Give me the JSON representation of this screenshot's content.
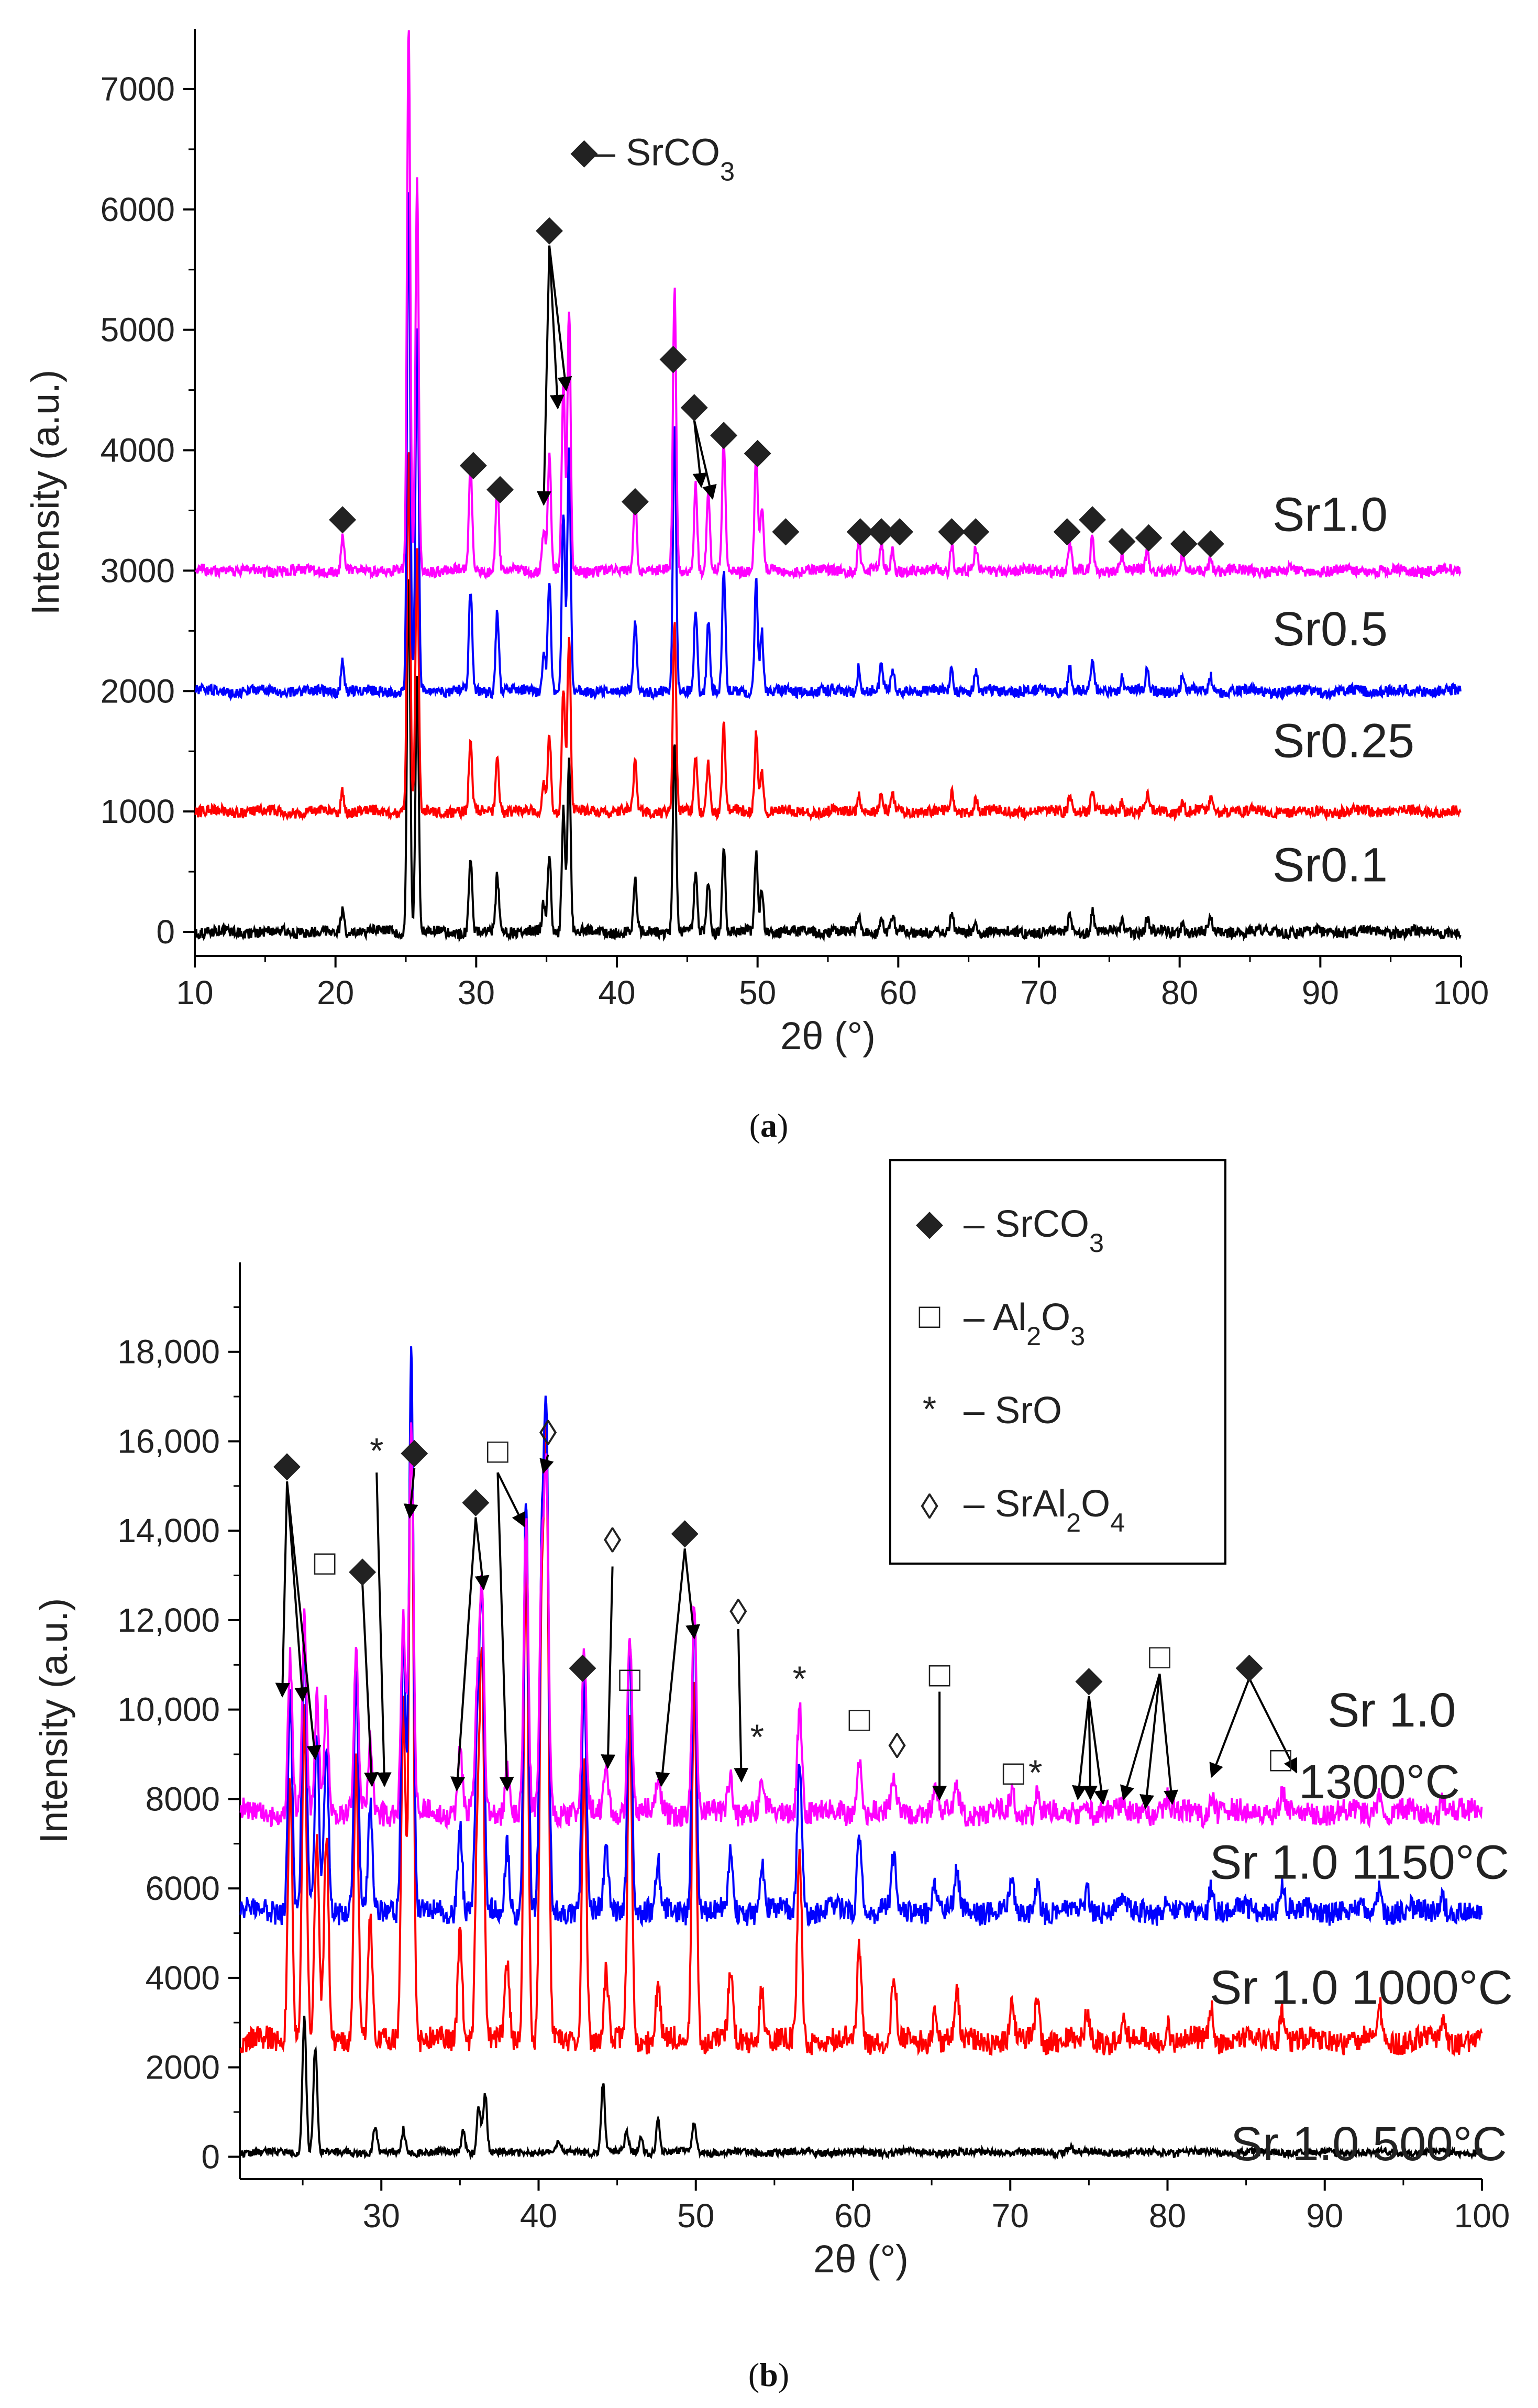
{
  "chart_data": [
    {
      "panel": "a",
      "caption": "(a)",
      "type": "line",
      "xlabel": "2θ (°)",
      "ylabel": "Intensity (a.u.)",
      "xlim": [
        10,
        100
      ],
      "ylim": [
        -200,
        7500
      ],
      "xticks": [
        10,
        20,
        30,
        40,
        50,
        60,
        70,
        80,
        90,
        100
      ],
      "yticks": [
        0,
        1000,
        2000,
        3000,
        4000,
        5000,
        6000,
        7000
      ],
      "xtick_labels": [
        "10",
        "20",
        "30",
        "40",
        "50",
        "60",
        "70",
        "80",
        "90",
        "100"
      ],
      "ytick_labels": [
        "0",
        "1000",
        "2000",
        "3000",
        "4000",
        "5000",
        "6000",
        "7000"
      ],
      "grid": false,
      "peaks": [
        [
          20.5,
          0.06
        ],
        [
          25.2,
          1.0
        ],
        [
          25.8,
          0.72
        ],
        [
          29.6,
          0.2
        ],
        [
          31.5,
          0.16
        ],
        [
          34.8,
          0.08
        ],
        [
          35.2,
          0.22
        ],
        [
          36.2,
          0.35
        ],
        [
          36.6,
          0.48
        ],
        [
          41.3,
          0.14
        ],
        [
          44.1,
          0.52
        ],
        [
          45.6,
          0.16
        ],
        [
          46.5,
          0.14
        ],
        [
          47.6,
          0.24
        ],
        [
          49.9,
          0.22
        ],
        [
          50.3,
          0.12
        ],
        [
          57.2,
          0.05
        ],
        [
          58.8,
          0.05
        ],
        [
          59.6,
          0.04
        ],
        [
          63.8,
          0.05
        ],
        [
          65.5,
          0.04
        ],
        [
          72.2,
          0.05
        ],
        [
          73.8,
          0.06
        ],
        [
          75.9,
          0.03
        ],
        [
          77.7,
          0.04
        ],
        [
          80.2,
          0.03
        ],
        [
          82.2,
          0.03
        ]
      ],
      "series": [
        {
          "name": "Sr0.1",
          "color": "#000000",
          "baseline": 0,
          "peak_scale": 3000
        },
        {
          "name": "Sr0.25",
          "color": "#ff0000",
          "baseline": 1000,
          "peak_scale": 3000
        },
        {
          "name": "Sr0.5",
          "color": "#0000ff",
          "baseline": 2000,
          "peak_scale": 4200
        },
        {
          "name": "Sr1.0",
          "color": "#ff00ff",
          "baseline": 3000,
          "peak_scale": 4500
        }
      ],
      "legend": {
        "symbol": "◆",
        "label": "– SrCO",
        "sub": "3"
      },
      "markers": [
        {
          "symbol": "◆",
          "x": 20.5,
          "y": 3450
        },
        {
          "symbol": "◆",
          "x": 29.8,
          "y": 3900
        },
        {
          "symbol": "◆",
          "x": 31.7,
          "y": 3700
        },
        {
          "symbol": "◆",
          "x": 35.2,
          "y": 5850
        },
        {
          "symbol": "◆",
          "x": 41.3,
          "y": 3600
        },
        {
          "symbol": "◆",
          "x": 44.0,
          "y": 4780
        },
        {
          "symbol": "◆",
          "x": 45.5,
          "y": 4380
        },
        {
          "symbol": "◆",
          "x": 47.6,
          "y": 4150
        },
        {
          "symbol": "◆",
          "x": 50.0,
          "y": 4000
        },
        {
          "symbol": "◆",
          "x": 52.0,
          "y": 3350
        },
        {
          "symbol": "◆",
          "x": 57.3,
          "y": 3350
        },
        {
          "symbol": "◆",
          "x": 58.8,
          "y": 3350
        },
        {
          "symbol": "◆",
          "x": 60.1,
          "y": 3350
        },
        {
          "symbol": "◆",
          "x": 63.8,
          "y": 3350
        },
        {
          "symbol": "◆",
          "x": 65.5,
          "y": 3350
        },
        {
          "symbol": "◆",
          "x": 72.0,
          "y": 3350
        },
        {
          "symbol": "◆",
          "x": 73.8,
          "y": 3450
        },
        {
          "symbol": "◆",
          "x": 75.9,
          "y": 3270
        },
        {
          "symbol": "◆",
          "x": 77.8,
          "y": 3300
        },
        {
          "symbol": "◆",
          "x": 80.3,
          "y": 3250
        },
        {
          "symbol": "◆",
          "x": 82.2,
          "y": 3250
        }
      ],
      "arrows": [
        {
          "from": [
            35.2,
            5700
          ],
          "to": [
            34.8,
            3550
          ]
        },
        {
          "from": [
            35.2,
            5700
          ],
          "to": [
            35.8,
            4350
          ]
        },
        {
          "from": [
            35.2,
            5700
          ],
          "to": [
            36.4,
            4500
          ]
        },
        {
          "from": [
            45.5,
            4250
          ],
          "to": [
            46.0,
            3700
          ]
        },
        {
          "from": [
            45.5,
            4250
          ],
          "to": [
            46.8,
            3600
          ]
        }
      ]
    },
    {
      "panel": "b",
      "caption": "(b)",
      "type": "line",
      "xlabel": "2θ (°)",
      "ylabel": "Intensity (a.u.)",
      "xlim": [
        21,
        100
      ],
      "ylim": [
        -500,
        20000
      ],
      "xticks": [
        30,
        40,
        50,
        60,
        70,
        80,
        90,
        100
      ],
      "yticks": [
        0,
        2000,
        4000,
        6000,
        8000,
        10000,
        12000,
        14000,
        16000,
        18000
      ],
      "xtick_labels": [
        "30",
        "40",
        "50",
        "60",
        "70",
        "80",
        "90",
        "100"
      ],
      "ytick_labels": [
        "0",
        "2000",
        "4000",
        "6000",
        "8000",
        "10,000",
        "12,000",
        "14,000",
        "16,000",
        "18,000"
      ],
      "grid": false,
      "peaks": [
        [
          24.2,
          0.4
        ],
        [
          25.1,
          0.5
        ],
        [
          25.9,
          0.3
        ],
        [
          26.5,
          0.3
        ],
        [
          28.4,
          0.42
        ],
        [
          29.3,
          0.18
        ],
        [
          31.4,
          0.5
        ],
        [
          31.9,
          1.0
        ],
        [
          35.0,
          0.16
        ],
        [
          36.1,
          0.3
        ],
        [
          36.4,
          0.55
        ],
        [
          38.0,
          0.12
        ],
        [
          39.2,
          0.75
        ],
        [
          40.2,
          0.6
        ],
        [
          40.5,
          0.85
        ],
        [
          42.9,
          0.42
        ],
        [
          44.3,
          0.1
        ],
        [
          45.8,
          0.48
        ],
        [
          47.6,
          0.08
        ],
        [
          49.9,
          0.55
        ],
        [
          52.2,
          0.1
        ],
        [
          54.2,
          0.08
        ],
        [
          56.6,
          0.28
        ],
        [
          60.4,
          0.14
        ],
        [
          62.6,
          0.1
        ],
        [
          65.2,
          0.05
        ],
        [
          66.6,
          0.07
        ],
        [
          70.1,
          0.05
        ],
        [
          71.7,
          0.06
        ],
        [
          74.9,
          0.04
        ],
        [
          77.2,
          0.03
        ],
        [
          80.0,
          0.03
        ],
        [
          82.8,
          0.05
        ],
        [
          87.3,
          0.05
        ],
        [
          93.5,
          0.05
        ],
        [
          97.5,
          0.03
        ]
      ],
      "peaks_500": [
        [
          25.1,
          1.0
        ],
        [
          25.8,
          0.8
        ],
        [
          29.6,
          0.2
        ],
        [
          31.4,
          0.17
        ],
        [
          35.2,
          0.15
        ],
        [
          36.2,
          0.35
        ],
        [
          36.6,
          0.45
        ],
        [
          41.3,
          0.08
        ],
        [
          44.1,
          0.52
        ],
        [
          45.6,
          0.14
        ],
        [
          46.5,
          0.12
        ],
        [
          47.6,
          0.24
        ],
        [
          49.9,
          0.22
        ],
        [
          57.2,
          0.03
        ],
        [
          73.8,
          0.05
        ]
      ],
      "series": [
        {
          "name": "Sr 1.0 500°C",
          "label": "Sr 1.0 500°C",
          "color": "#000000",
          "baseline": 100,
          "peak_scale": 3000
        },
        {
          "name": "Sr 1.0 1000°C",
          "label": "Sr 1.0 1000°C",
          "color": "#ff0000",
          "baseline": 2600,
          "peak_scale": 15000
        },
        {
          "name": "Sr 1.0 1150°C",
          "label": "Sr 1.0 1150°C",
          "color": "#0000ff",
          "baseline": 5500,
          "peak_scale": 12500
        },
        {
          "name": "Sr 1.0 1300°C",
          "label_line1": "Sr 1.0",
          "label_line2": "1300°C",
          "color": "#ff00ff",
          "baseline": 7700,
          "peak_scale": 8600
        }
      ],
      "legend": [
        {
          "symbol": "◆",
          "label": "– SrCO",
          "sub": "3",
          "tail": ""
        },
        {
          "symbol": "□",
          "label": "– Al",
          "sub": "2",
          "tail": "O",
          "sub2": "3"
        },
        {
          "symbol": "*",
          "label": "– SrO",
          "sub": "",
          "tail": ""
        },
        {
          "symbol": "◊",
          "label": "– SrAl",
          "sub": "2",
          "tail": "O",
          "sub2": "4"
        }
      ],
      "markers": [
        {
          "symbol": "◆",
          "x": 24.0,
          "y": 15500
        },
        {
          "symbol": "□",
          "x": 26.4,
          "y": 13300
        },
        {
          "symbol": "◆",
          "x": 28.8,
          "y": 13150
        },
        {
          "symbol": "*",
          "x": 29.7,
          "y": 15800
        },
        {
          "symbol": "◆",
          "x": 32.1,
          "y": 15800
        },
        {
          "symbol": "◆",
          "x": 36.0,
          "y": 14700
        },
        {
          "symbol": "□",
          "x": 37.4,
          "y": 15800
        },
        {
          "symbol": "◊",
          "x": 40.6,
          "y": 16200
        },
        {
          "symbol": "◊",
          "x": 44.7,
          "y": 13800
        },
        {
          "symbol": "◆",
          "x": 42.8,
          "y": 11000
        },
        {
          "symbol": "□",
          "x": 45.8,
          "y": 10700
        },
        {
          "symbol": "◆",
          "x": 49.3,
          "y": 14000
        },
        {
          "symbol": "◊",
          "x": 52.7,
          "y": 12200
        },
        {
          "symbol": "*",
          "x": 53.9,
          "y": 9400
        },
        {
          "symbol": "*",
          "x": 56.6,
          "y": 10700
        },
        {
          "symbol": "□",
          "x": 60.4,
          "y": 9800
        },
        {
          "symbol": "◊",
          "x": 62.8,
          "y": 9200
        },
        {
          "symbol": "□",
          "x": 65.5,
          "y": 10800
        },
        {
          "symbol": "□",
          "x": 70.2,
          "y": 8600
        },
        {
          "symbol": "*",
          "x": 71.6,
          "y": 8600
        },
        {
          "symbol": "◆",
          "x": 75.0,
          "y": 10700
        },
        {
          "symbol": "□",
          "x": 79.5,
          "y": 11200
        },
        {
          "symbol": "◆",
          "x": 85.2,
          "y": 11000
        },
        {
          "symbol": "□",
          "x": 87.2,
          "y": 8900
        }
      ],
      "arrows": [
        {
          "from": [
            24.0,
            15100
          ],
          "to": [
            23.7,
            10300
          ]
        },
        {
          "from": [
            24.0,
            15100
          ],
          "to": [
            25.0,
            10200
          ]
        },
        {
          "from": [
            24.0,
            15100
          ],
          "to": [
            25.8,
            8900
          ]
        },
        {
          "from": [
            28.8,
            12800
          ],
          "to": [
            29.4,
            8300
          ]
        },
        {
          "from": [
            29.7,
            15300
          ],
          "to": [
            30.2,
            8300
          ]
        },
        {
          "from": [
            32.1,
            15400
          ],
          "to": [
            31.8,
            14300
          ]
        },
        {
          "from": [
            36.0,
            14300
          ],
          "to": [
            34.8,
            8200
          ]
        },
        {
          "from": [
            36.0,
            14300
          ],
          "to": [
            36.5,
            12700
          ]
        },
        {
          "from": [
            37.4,
            15300
          ],
          "to": [
            38.0,
            8200
          ]
        },
        {
          "from": [
            37.4,
            15300
          ],
          "to": [
            39.1,
            14100
          ]
        },
        {
          "from": [
            40.6,
            15700
          ],
          "to": [
            40.3,
            15300
          ]
        },
        {
          "from": [
            44.7,
            13200
          ],
          "to": [
            44.4,
            8700
          ]
        },
        {
          "from": [
            49.3,
            13600
          ],
          "to": [
            47.8,
            8300
          ]
        },
        {
          "from": [
            49.3,
            13600
          ],
          "to": [
            49.9,
            11600
          ]
        },
        {
          "from": [
            52.7,
            11800
          ],
          "to": [
            52.9,
            8400
          ]
        },
        {
          "from": [
            65.5,
            10400
          ],
          "to": [
            65.5,
            8000
          ]
        },
        {
          "from": [
            75.0,
            10300
          ],
          "to": [
            74.3,
            8000
          ]
        },
        {
          "from": [
            75.0,
            10300
          ],
          "to": [
            75.1,
            8000
          ]
        },
        {
          "from": [
            75.0,
            10300
          ],
          "to": [
            75.9,
            7900
          ]
        },
        {
          "from": [
            79.5,
            10800
          ],
          "to": [
            77.2,
            8000
          ]
        },
        {
          "from": [
            79.5,
            10800
          ],
          "to": [
            78.6,
            7800
          ]
        },
        {
          "from": [
            79.5,
            10800
          ],
          "to": [
            80.3,
            7900
          ]
        },
        {
          "from": [
            85.2,
            10700
          ],
          "to": [
            82.8,
            8500
          ]
        },
        {
          "from": [
            85.2,
            10700
          ],
          "to": [
            88.2,
            8600
          ]
        }
      ]
    }
  ]
}
